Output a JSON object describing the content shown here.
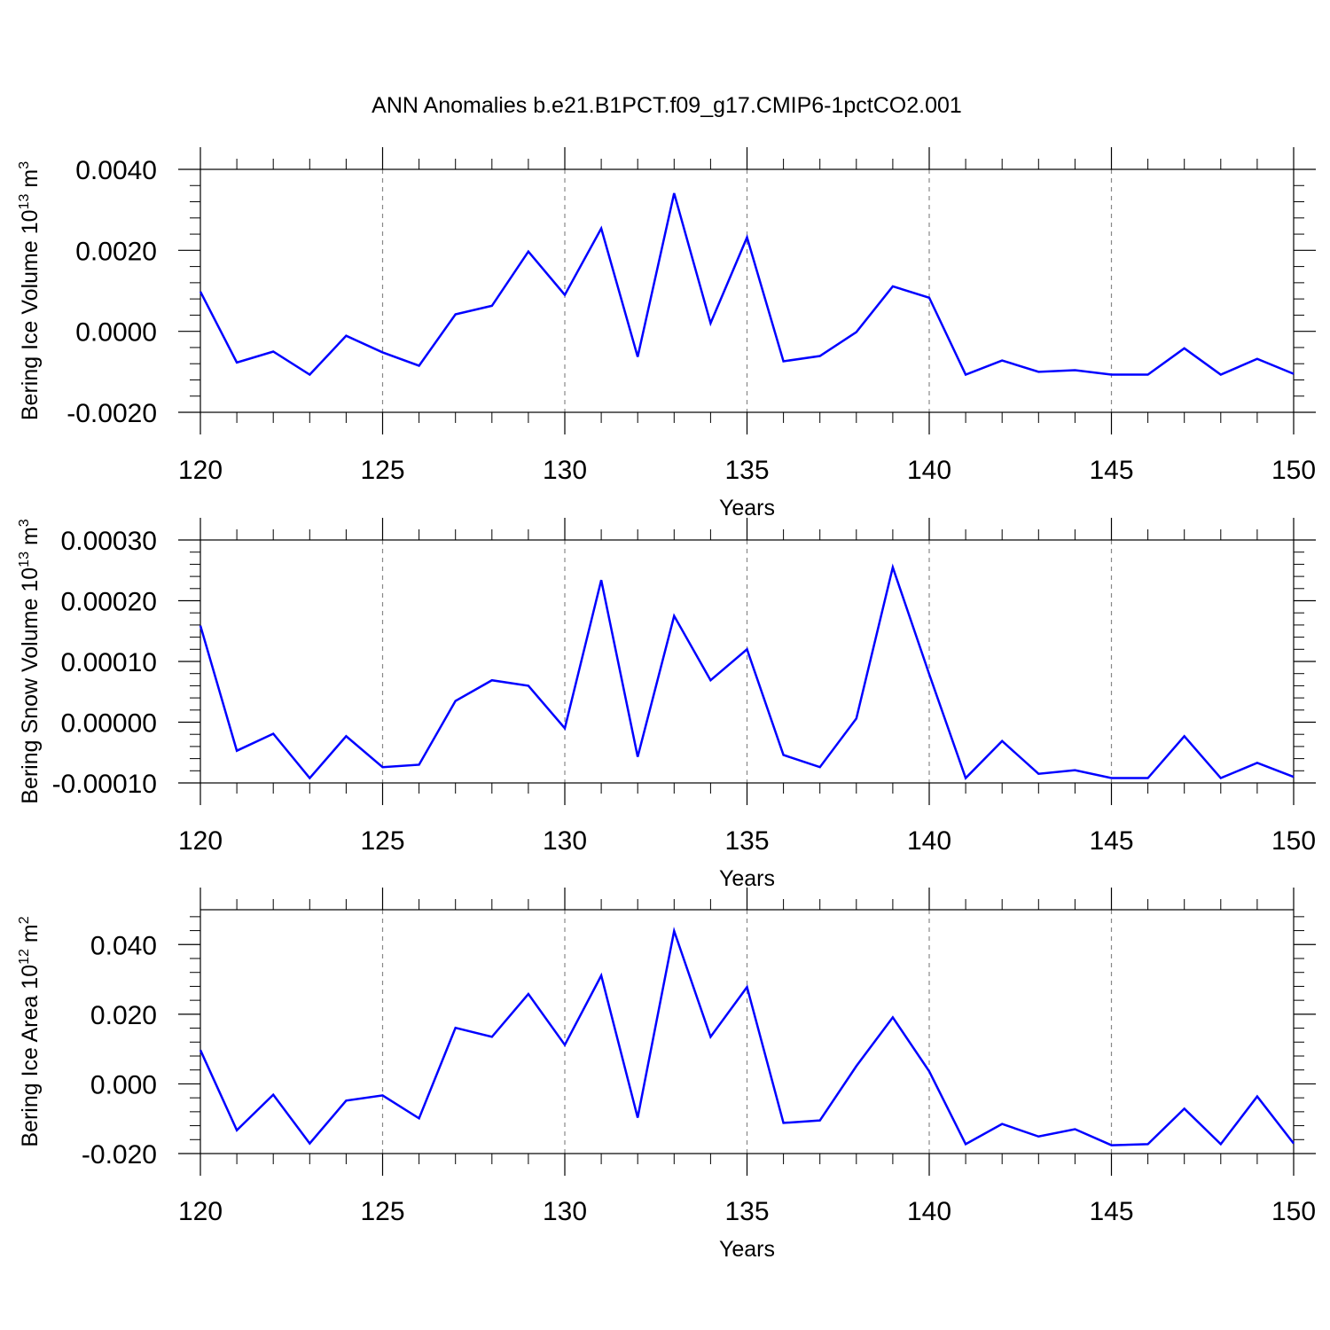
{
  "title": "ANN Anomalies b.e21.B1PCT.f09_g17.CMIP6-1pctCO2.001",
  "chart_data": [
    {
      "type": "line",
      "ylabel": "Bering Ice Volume",
      "ylabel_units": {
        "base": "10",
        "exponent": "13",
        "unit": "m",
        "unit_exponent": "3"
      },
      "xlabel": "Years",
      "xlim": [
        120,
        150
      ],
      "xticks": [
        120,
        125,
        130,
        135,
        140,
        145,
        150
      ],
      "ylim": [
        -0.002,
        0.004
      ],
      "yticks": [
        {
          "value": -0.002,
          "label": "-0.0020"
        },
        {
          "value": 0,
          "label": "0.0000"
        },
        {
          "value": 0.002,
          "label": "0.0020"
        },
        {
          "value": 0.004,
          "label": "0.0040"
        }
      ],
      "grid": true,
      "x": [
        120,
        121,
        122,
        123,
        124,
        125,
        126,
        127,
        128,
        129,
        130,
        131,
        132,
        133,
        134,
        135,
        136,
        137,
        138,
        139,
        140,
        141,
        142,
        143,
        144,
        145,
        146,
        147,
        148,
        149,
        150
      ],
      "series": [
        {
          "color": "#0000ff",
          "values": [
            0.00098,
            -0.00077,
            -0.0005,
            -0.00107,
            -0.00011,
            -0.00052,
            -0.00085,
            0.00042,
            0.00063,
            0.00197,
            0.0009,
            0.00254,
            -0.00063,
            0.00341,
            0.0002,
            0.00232,
            -0.00074,
            -0.00061,
            -2e-05,
            0.00111,
            0.00083,
            -0.00107,
            -0.00072,
            -0.001,
            -0.00096,
            -0.00107,
            -0.00107,
            -0.00042,
            -0.00107,
            -0.00068,
            -0.00105
          ]
        }
      ]
    },
    {
      "type": "line",
      "ylabel": "Bering Snow Volume",
      "ylabel_units": {
        "base": "10",
        "exponent": "13",
        "unit": "m",
        "unit_exponent": "3"
      },
      "xlabel": "Years",
      "xlim": [
        120,
        150
      ],
      "xticks": [
        120,
        125,
        130,
        135,
        140,
        145,
        150
      ],
      "ylim": [
        -0.0001,
        0.0003
      ],
      "yticks": [
        {
          "value": -0.0001,
          "label": "-0.00010"
        },
        {
          "value": 0,
          "label": "0.00000"
        },
        {
          "value": 0.0001,
          "label": "0.00010"
        },
        {
          "value": 0.0002,
          "label": "0.00020"
        },
        {
          "value": 0.0003,
          "label": "0.00030"
        }
      ],
      "grid": true,
      "x": [
        120,
        121,
        122,
        123,
        124,
        125,
        126,
        127,
        128,
        129,
        130,
        131,
        132,
        133,
        134,
        135,
        136,
        137,
        138,
        139,
        140,
        141,
        142,
        143,
        144,
        145,
        146,
        147,
        148,
        149,
        150
      ],
      "series": [
        {
          "color": "#0000ff",
          "values": [
            0.000159,
            -4.7e-05,
            -1.9e-05,
            -9.2e-05,
            -2.3e-05,
            -7.4e-05,
            -7e-05,
            3.5e-05,
            6.9e-05,
            6e-05,
            -1e-05,
            0.000234,
            -5.7e-05,
            0.000175,
            6.9e-05,
            0.00012,
            -5.4e-05,
            -7.4e-05,
            6e-06,
            0.000255,
            7.9e-05,
            -9.2e-05,
            -3.1e-05,
            -8.5e-05,
            -7.9e-05,
            -9.2e-05,
            -9.2e-05,
            -2.3e-05,
            -9.2e-05,
            -6.7e-05,
            -9e-05
          ]
        }
      ]
    },
    {
      "type": "line",
      "ylabel": "Bering Ice Area",
      "ylabel_units": {
        "base": "10",
        "exponent": "12",
        "unit": "m",
        "unit_exponent": "2"
      },
      "xlabel": "Years",
      "xlim": [
        120,
        150
      ],
      "xticks": [
        120,
        125,
        130,
        135,
        140,
        145,
        150
      ],
      "ylim": [
        -0.02,
        0.05
      ],
      "yticks": [
        {
          "value": -0.02,
          "label": "-0.020"
        },
        {
          "value": 0,
          "label": "0.000"
        },
        {
          "value": 0.02,
          "label": "0.020"
        },
        {
          "value": 0.04,
          "label": "0.040"
        }
      ],
      "grid": true,
      "x": [
        120,
        121,
        122,
        123,
        124,
        125,
        126,
        127,
        128,
        129,
        130,
        131,
        132,
        133,
        134,
        135,
        136,
        137,
        138,
        139,
        140,
        141,
        142,
        143,
        144,
        145,
        146,
        147,
        148,
        149,
        150
      ],
      "series": [
        {
          "color": "#0000ff",
          "values": [
            0.0097,
            -0.0133,
            -0.0031,
            -0.0171,
            -0.0048,
            -0.0033,
            -0.0099,
            0.0161,
            0.0135,
            0.0258,
            0.0112,
            0.0311,
            -0.0097,
            0.0439,
            0.0135,
            0.0278,
            -0.0112,
            -0.0105,
            0.0051,
            0.0191,
            0.0036,
            -0.0173,
            -0.0115,
            -0.0151,
            -0.013,
            -0.0176,
            -0.0173,
            -0.0071,
            -0.0173,
            -0.0036,
            -0.0171
          ]
        }
      ]
    }
  ]
}
